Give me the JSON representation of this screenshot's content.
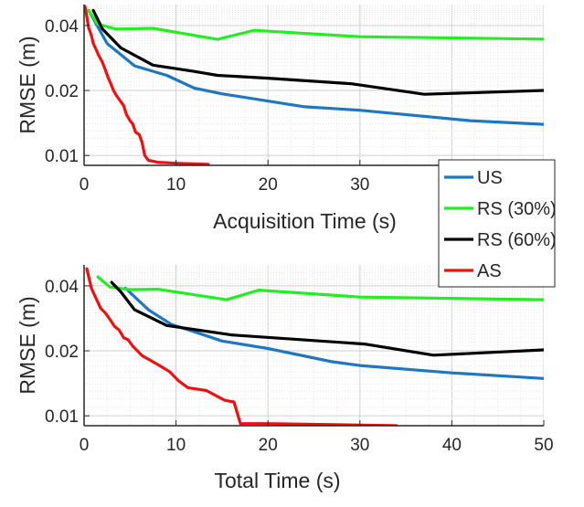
{
  "chart_data": [
    {
      "type": "line",
      "xlabel": "Acquisition Time (s)",
      "ylabel": "RMSE (m)",
      "xlim": [
        0,
        50
      ],
      "ylim": [
        0.009,
        0.05
      ],
      "yscale": "log",
      "grid": true,
      "xticks": [
        0,
        10,
        20,
        30
      ],
      "xtick_labels": [
        "0",
        "10",
        "20",
        "30"
      ],
      "yticks": [
        0.01,
        0.02,
        0.04
      ],
      "ytick_labels": [
        "0.01",
        "0.02",
        "0.04"
      ],
      "series": [
        {
          "name": "US",
          "color": "#1f77c0",
          "x": [
            0.5,
            2.5,
            5.5,
            9,
            12,
            15,
            24,
            30,
            42,
            52
          ],
          "y": [
            0.047,
            0.033,
            0.026,
            0.0235,
            0.0205,
            0.0193,
            0.0168,
            0.0162,
            0.0145,
            0.0138
          ]
        },
        {
          "name": "RS (30%)",
          "color": "#22ee22",
          "x": [
            0.5,
            1.5,
            3.5,
            7.5,
            14.5,
            18.5,
            30,
            52
          ],
          "y": [
            0.047,
            0.0405,
            0.0385,
            0.0388,
            0.0345,
            0.038,
            0.0355,
            0.0345
          ]
        },
        {
          "name": "RS (60%)",
          "color": "#000000",
          "x": [
            1,
            2,
            4,
            7.5,
            12,
            14.5,
            20,
            29,
            37,
            50,
            52
          ],
          "y": [
            0.047,
            0.0385,
            0.0315,
            0.0262,
            0.0245,
            0.0235,
            0.0228,
            0.0215,
            0.0192,
            0.02,
            0.0202
          ]
        },
        {
          "name": "AS",
          "color": "#ee1111",
          "x": [
            0.1,
            0.3,
            0.5,
            0.8,
            1.0,
            1.3,
            1.6,
            2.0,
            2.3,
            2.6,
            2.9,
            3.2,
            3.5,
            3.9,
            4.3,
            4.6,
            5.0,
            5.3,
            5.6,
            6.0,
            6.3,
            6.6,
            7.0,
            8.0,
            10.0,
            13.5
          ],
          "y": [
            0.049,
            0.044,
            0.039,
            0.036,
            0.033,
            0.031,
            0.029,
            0.027,
            0.025,
            0.023,
            0.0215,
            0.02,
            0.019,
            0.018,
            0.017,
            0.0155,
            0.0145,
            0.014,
            0.0128,
            0.0125,
            0.0115,
            0.01,
            0.0095,
            0.0093,
            0.0092,
            0.0091
          ]
        }
      ]
    },
    {
      "type": "line",
      "xlabel": "Total  Time (s)",
      "ylabel": "RMSE  (m)",
      "xlim": [
        0,
        50
      ],
      "ylim": [
        0.009,
        0.05
      ],
      "yscale": "log",
      "grid": true,
      "xticks": [
        0,
        10,
        20,
        30,
        40,
        50
      ],
      "xtick_labels": [
        "0",
        "10",
        "20",
        "30",
        "40",
        "50"
      ],
      "yticks": [
        0.01,
        0.02,
        0.04
      ],
      "ytick_labels": [
        "0.01",
        "0.02",
        "0.04"
      ],
      "series": [
        {
          "name": "US",
          "color": "#1f77c0",
          "x": [
            4.5,
            7,
            9.5,
            12,
            15,
            20,
            27,
            30,
            40,
            50
          ],
          "y": [
            0.039,
            0.031,
            0.0265,
            0.0245,
            0.0222,
            0.0205,
            0.0178,
            0.0171,
            0.0158,
            0.0149
          ]
        },
        {
          "name": "RS (30%)",
          "color": "#22ee22",
          "x": [
            1.5,
            2.8,
            5,
            8,
            15.5,
            19,
            30,
            50
          ],
          "y": [
            0.044,
            0.0395,
            0.0384,
            0.0386,
            0.0345,
            0.0382,
            0.0355,
            0.0345
          ]
        },
        {
          "name": "RS (60%)",
          "color": "#000000",
          "x": [
            3,
            4,
            5.5,
            9,
            16,
            30.5,
            38,
            50
          ],
          "y": [
            0.0415,
            0.0375,
            0.031,
            0.0262,
            0.0237,
            0.0215,
            0.0191,
            0.0202
          ]
        },
        {
          "name": "AS",
          "color": "#ee1111",
          "x": [
            0.3,
            0.8,
            1.3,
            1.8,
            2.3,
            2.8,
            3.3,
            3.8,
            4.3,
            4.8,
            5.3,
            5.8,
            6.3,
            7.3,
            8.3,
            9.3,
            10.3,
            11.3,
            13.3,
            15.3,
            16.3,
            17,
            20,
            34
          ],
          "y": [
            0.048,
            0.039,
            0.035,
            0.0315,
            0.03,
            0.028,
            0.026,
            0.025,
            0.023,
            0.0225,
            0.021,
            0.02,
            0.019,
            0.018,
            0.017,
            0.016,
            0.0145,
            0.0135,
            0.0131,
            0.0118,
            0.0116,
            0.0092,
            0.0092,
            0.009
          ]
        }
      ]
    }
  ]
}
